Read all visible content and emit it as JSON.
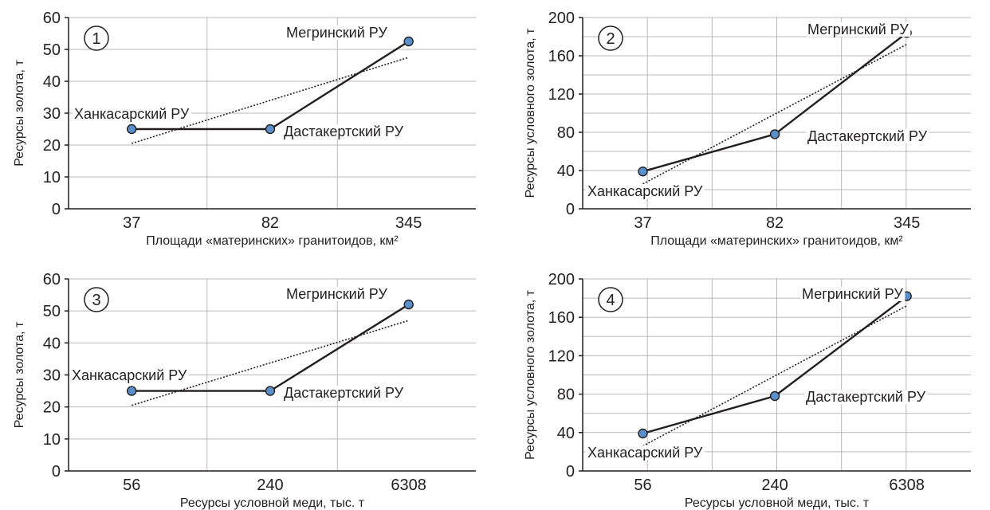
{
  "colors": {
    "grid": "#b9b9b9",
    "line": "#231f20",
    "point_fill": "#5b8fc9",
    "point_stroke": "#231f20"
  },
  "chart_data": [
    {
      "type": "line",
      "panel_label": "1",
      "xlabel": "Площади «материнских» гранитоидов, км²",
      "ylabel": "Ресурсы золота, т",
      "categories": [
        "37",
        "82",
        "345"
      ],
      "ylim": [
        0,
        60
      ],
      "yticks": [
        0,
        10,
        20,
        30,
        40,
        50,
        60
      ],
      "grid": true,
      "series": [
        {
          "values": [
            25,
            25,
            52.5
          ],
          "style": "solid",
          "markers": true
        },
        {
          "values": [
            20.5,
            34,
            47.5
          ],
          "style": "dotted",
          "markers": false,
          "trend": true
        }
      ],
      "annotations": [
        "Ханкасарский РУ",
        "Дастакертский РУ",
        "Мегринский РУ"
      ]
    },
    {
      "type": "line",
      "panel_label": "2",
      "xlabel": "Площади «материнских» гранитоидов, км²",
      "ylabel": "Ресурсы условного золота, т",
      "categories": [
        "37",
        "82",
        "345"
      ],
      "ylim": [
        0,
        200
      ],
      "yticks": [
        0,
        40,
        80,
        120,
        160,
        200
      ],
      "grid": true,
      "series": [
        {
          "values": [
            39,
            78,
            184
          ],
          "style": "solid",
          "markers": true
        },
        {
          "values": [
            26,
            99,
            172
          ],
          "style": "dotted",
          "markers": false,
          "trend": true
        }
      ],
      "annotations": [
        "Ханкасарский РУ",
        "Дастакертский РУ",
        "Мегринский РУ"
      ]
    },
    {
      "type": "line",
      "panel_label": "3",
      "xlabel": "Ресурсы условной меди, тыс. т",
      "ylabel": "Ресурсы золота, т",
      "categories": [
        "56",
        "240",
        "6308"
      ],
      "ylim": [
        0,
        60
      ],
      "yticks": [
        0,
        10,
        20,
        30,
        40,
        50,
        60
      ],
      "grid": true,
      "series": [
        {
          "values": [
            25,
            25,
            52
          ],
          "style": "solid",
          "markers": true
        },
        {
          "values": [
            20.5,
            34,
            47
          ],
          "style": "dotted",
          "markers": false,
          "trend": true
        }
      ],
      "annotations": [
        "Ханкасарский РУ",
        "Дастакертский РУ",
        "Мегринский РУ"
      ]
    },
    {
      "type": "line",
      "panel_label": "4",
      "xlabel": "Ресурсы условной меди, тыс. т",
      "ylabel": "Ресурсы условного золота, т",
      "categories": [
        "56",
        "240",
        "6308"
      ],
      "ylim": [
        0,
        200
      ],
      "yticks": [
        0,
        40,
        80,
        120,
        160,
        200
      ],
      "grid": true,
      "series": [
        {
          "values": [
            39,
            78,
            182
          ],
          "style": "solid",
          "markers": true
        },
        {
          "values": [
            26,
            99,
            172
          ],
          "style": "dotted",
          "markers": false,
          "trend": true
        }
      ],
      "annotations": [
        "Ханкасарский РУ",
        "Дастакертский РУ",
        "Мегринский РУ"
      ]
    }
  ]
}
